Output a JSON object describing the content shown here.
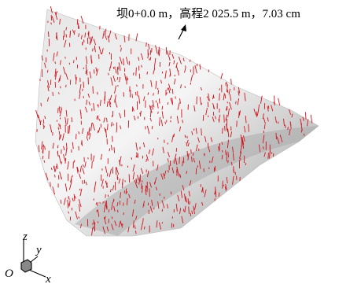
{
  "annotation": "坝0+0.0 m，高程2 025.5 m，7.03 cm",
  "axes": {
    "origin": "O",
    "x": "x",
    "y": "y",
    "z": "z"
  }
}
